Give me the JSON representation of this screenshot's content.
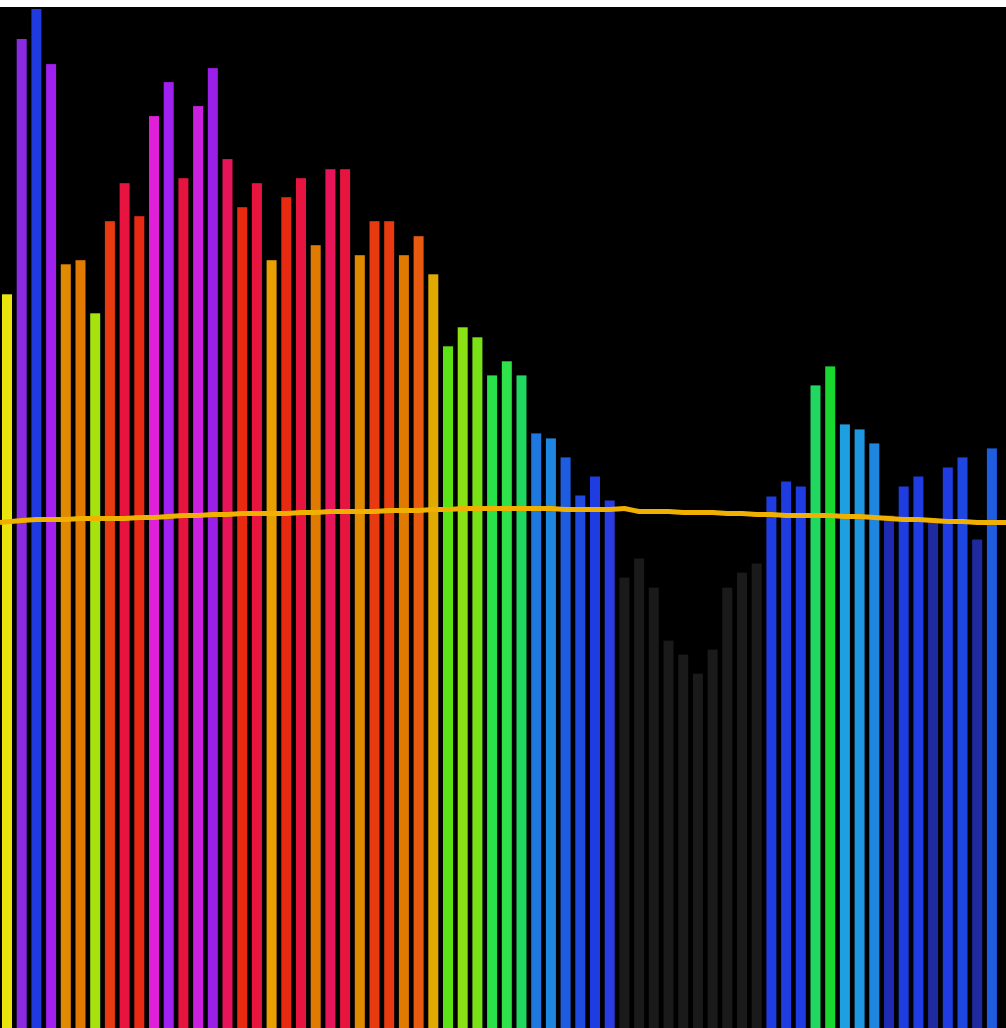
{
  "chart_data": {
    "type": "bar",
    "ylim": [
      0,
      1020
    ],
    "grid": false,
    "legend": "none",
    "background_color": "#000000",
    "bars": [
      {
        "value": 733,
        "color": "#e8e40c"
      },
      {
        "value": 988,
        "color": "#8a2be2"
      },
      {
        "value": 1018,
        "color": "#1f3be0"
      },
      {
        "value": 963,
        "color": "#a020f0"
      },
      {
        "value": 763,
        "color": "#e08a00"
      },
      {
        "value": 767,
        "color": "#e07a00"
      },
      {
        "value": 714,
        "color": "#a6e20c"
      },
      {
        "value": 806,
        "color": "#e83a10"
      },
      {
        "value": 844,
        "color": "#e81440"
      },
      {
        "value": 811,
        "color": "#e82a14"
      },
      {
        "value": 911,
        "color": "#e020d8"
      },
      {
        "value": 945,
        "color": "#a020f0"
      },
      {
        "value": 849,
        "color": "#e81440"
      },
      {
        "value": 921,
        "color": "#cc20e0"
      },
      {
        "value": 959,
        "color": "#9a20e8"
      },
      {
        "value": 868,
        "color": "#e8145a"
      },
      {
        "value": 820,
        "color": "#e82a10"
      },
      {
        "value": 844,
        "color": "#e81440"
      },
      {
        "value": 767,
        "color": "#e8a000"
      },
      {
        "value": 830,
        "color": "#e82a10"
      },
      {
        "value": 849,
        "color": "#e81440"
      },
      {
        "value": 782,
        "color": "#e07a00"
      },
      {
        "value": 858,
        "color": "#e8145a"
      },
      {
        "value": 858,
        "color": "#e81440"
      },
      {
        "value": 772,
        "color": "#e08a00"
      },
      {
        "value": 806,
        "color": "#e83a10"
      },
      {
        "value": 806,
        "color": "#e83a10"
      },
      {
        "value": 772,
        "color": "#e07a00"
      },
      {
        "value": 791,
        "color": "#e85a10"
      },
      {
        "value": 753,
        "color": "#e0aa00"
      },
      {
        "value": 681,
        "color": "#5ae214"
      },
      {
        "value": 700,
        "color": "#8ae214"
      },
      {
        "value": 690,
        "color": "#78e214"
      },
      {
        "value": 652,
        "color": "#28e24a"
      },
      {
        "value": 666,
        "color": "#30e24a"
      },
      {
        "value": 652,
        "color": "#20d860"
      },
      {
        "value": 594,
        "color": "#1f78e0"
      },
      {
        "value": 589,
        "color": "#1e86e0"
      },
      {
        "value": 570,
        "color": "#1e5ce0"
      },
      {
        "value": 532,
        "color": "#1e4ae0"
      },
      {
        "value": 551,
        "color": "#1e3ce0"
      },
      {
        "value": 527,
        "color": "#2a3ce0"
      },
      {
        "value": 450,
        "color": "#1a1a1a"
      },
      {
        "value": 469,
        "color": "#1a1a1a"
      },
      {
        "value": 440,
        "color": "#1a1a1a"
      },
      {
        "value": 387,
        "color": "#1a1a1a"
      },
      {
        "value": 373,
        "color": "#1a1a1a"
      },
      {
        "value": 354,
        "color": "#1a1a1a"
      },
      {
        "value": 378,
        "color": "#1a1a1a"
      },
      {
        "value": 440,
        "color": "#1a1a1a"
      },
      {
        "value": 455,
        "color": "#1a1a1a"
      },
      {
        "value": 464,
        "color": "#1a1a1a"
      },
      {
        "value": 531,
        "color": "#1e3ce0"
      },
      {
        "value": 546,
        "color": "#1e3ce0"
      },
      {
        "value": 541,
        "color": "#1e3ce0"
      },
      {
        "value": 642,
        "color": "#20d860"
      },
      {
        "value": 661,
        "color": "#18d830"
      },
      {
        "value": 603,
        "color": "#1ea0e0"
      },
      {
        "value": 598,
        "color": "#1e96e0"
      },
      {
        "value": 584,
        "color": "#1e86e0"
      },
      {
        "value": 512,
        "color": "#1e2ab0"
      },
      {
        "value": 541,
        "color": "#1e3ce0"
      },
      {
        "value": 551,
        "color": "#1e3ce0"
      },
      {
        "value": 507,
        "color": "#1e2aa0"
      },
      {
        "value": 560,
        "color": "#1e3ce0"
      },
      {
        "value": 570,
        "color": "#1e46e0"
      },
      {
        "value": 488,
        "color": "#1e2aa0"
      },
      {
        "value": 579,
        "color": "#1e5ce0"
      }
    ],
    "line": {
      "color": "#f0b000",
      "values": [
        505,
        507,
        508,
        508,
        508,
        509,
        509,
        509,
        509,
        510,
        510,
        511,
        512,
        512,
        513,
        513,
        514,
        514,
        514,
        514,
        515,
        515,
        516,
        516,
        516,
        516,
        517,
        517,
        517,
        518,
        518,
        519,
        519,
        519,
        519,
        519,
        519,
        519,
        518,
        518,
        518,
        518,
        519,
        516,
        516,
        516,
        515,
        515,
        515,
        514,
        514,
        513,
        513,
        512,
        512,
        512,
        512,
        511,
        511,
        510,
        509,
        508,
        508,
        507,
        506,
        506,
        505,
        505
      ]
    }
  }
}
